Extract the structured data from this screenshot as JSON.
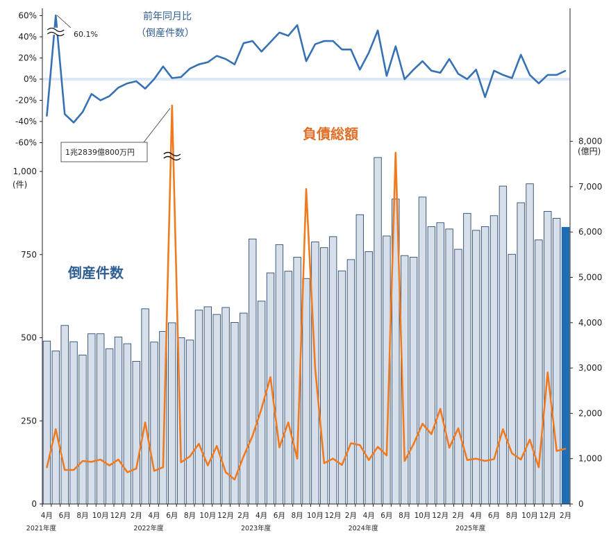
{
  "chart_data": [
    {
      "type": "line",
      "title": "前年同月比",
      "subtitle": "（倒産件数）",
      "ylim": [
        -60,
        60
      ],
      "yticks": [
        "60%",
        "40%",
        "20%",
        "0%",
        "-20%",
        "-40%",
        "-60%"
      ],
      "annotation": "60.1%",
      "values": [
        -35.0,
        60.1,
        -33.0,
        -41.0,
        -31.0,
        -14.0,
        -20.0,
        -16.0,
        -8.0,
        -4.0,
        -2.0,
        -9.0,
        0.0,
        12.0,
        1.0,
        2.0,
        10.0,
        14.0,
        16.0,
        22.0,
        19.0,
        14.0,
        34.0,
        36.0,
        26.0,
        35.0,
        44.0,
        41.0,
        51.0,
        17.0,
        33.0,
        36.0,
        36.0,
        28.0,
        28.0,
        9.0,
        25.0,
        46.0,
        3.0,
        31.0,
        0.0,
        9.0,
        17.0,
        8.0,
        6.0,
        19.0,
        5.0,
        0.0,
        9.0,
        -17.0,
        8.0,
        4.0,
        1.0,
        23.0,
        4.0,
        -4.0,
        4.0,
        4.0,
        8.0
      ]
    },
    {
      "type": "bar",
      "title": "倒産件数",
      "ylabel": "(件)",
      "ylim": [
        0,
        1000
      ],
      "yticks": [
        "0",
        "250",
        "500",
        "750",
        "1,000"
      ],
      "values": [
        490,
        460,
        537,
        488,
        448,
        512,
        512,
        467,
        502,
        482,
        429,
        587,
        487,
        519,
        545,
        500,
        493,
        583,
        593,
        570,
        591,
        546,
        574,
        797,
        610,
        695,
        780,
        700,
        742,
        678,
        788,
        771,
        804,
        701,
        735,
        870,
        759,
        1042,
        806,
        917,
        747,
        742,
        923,
        834,
        846,
        827,
        766,
        874,
        823,
        834,
        867,
        956,
        751,
        906,
        963,
        794,
        880,
        859,
        832
      ],
      "highlight_color": "#1f6db5"
    },
    {
      "type": "line",
      "title": "負債総額",
      "ylabel": "(億円)",
      "ylim": [
        0,
        8000
      ],
      "yticks": [
        "0",
        "1,000",
        "2,000",
        "3,000",
        "4,000",
        "5,000",
        "6,000",
        "7,000",
        "8,000"
      ],
      "annotation": "1兆2839億800万円",
      "values": [
        800,
        1650,
        750,
        750,
        950,
        930,
        980,
        850,
        980,
        700,
        780,
        1800,
        730,
        810,
        12839,
        920,
        1050,
        1330,
        850,
        1280,
        700,
        540,
        1050,
        1500,
        2100,
        2800,
        1250,
        1800,
        1000,
        6950,
        3000,
        900,
        1000,
        860,
        1340,
        1300,
        970,
        1260,
        1070,
        7750,
        950,
        1320,
        1770,
        1540,
        2100,
        1240,
        1670,
        970,
        1000,
        950,
        990,
        1650,
        1120,
        980,
        1420,
        810,
        2900,
        1170,
        1220
      ]
    }
  ],
  "xaxis": {
    "month_ticks": [
      "4月",
      "6月",
      "8月",
      "10月",
      "12月",
      "2月",
      "4月",
      "6月",
      "8月",
      "10月",
      "12月",
      "2月",
      "4月",
      "6月",
      "8月",
      "10月",
      "12月",
      "2月",
      "4月",
      "6月",
      "8月",
      "10月",
      "12月",
      "2月",
      "4月",
      "6月",
      "8月",
      "10月",
      "12月",
      "2月"
    ],
    "fiscal_years": [
      "2021年度",
      "2022年度",
      "2023年度",
      "2024年度",
      "2025年度"
    ]
  },
  "colors": {
    "bar_fill": "#d6dfea",
    "bar_stroke": "#2c4a6e",
    "debt_line": "#ef7a1f",
    "yoy_line": "#3672b3",
    "zero_band": "#dce8f5"
  }
}
